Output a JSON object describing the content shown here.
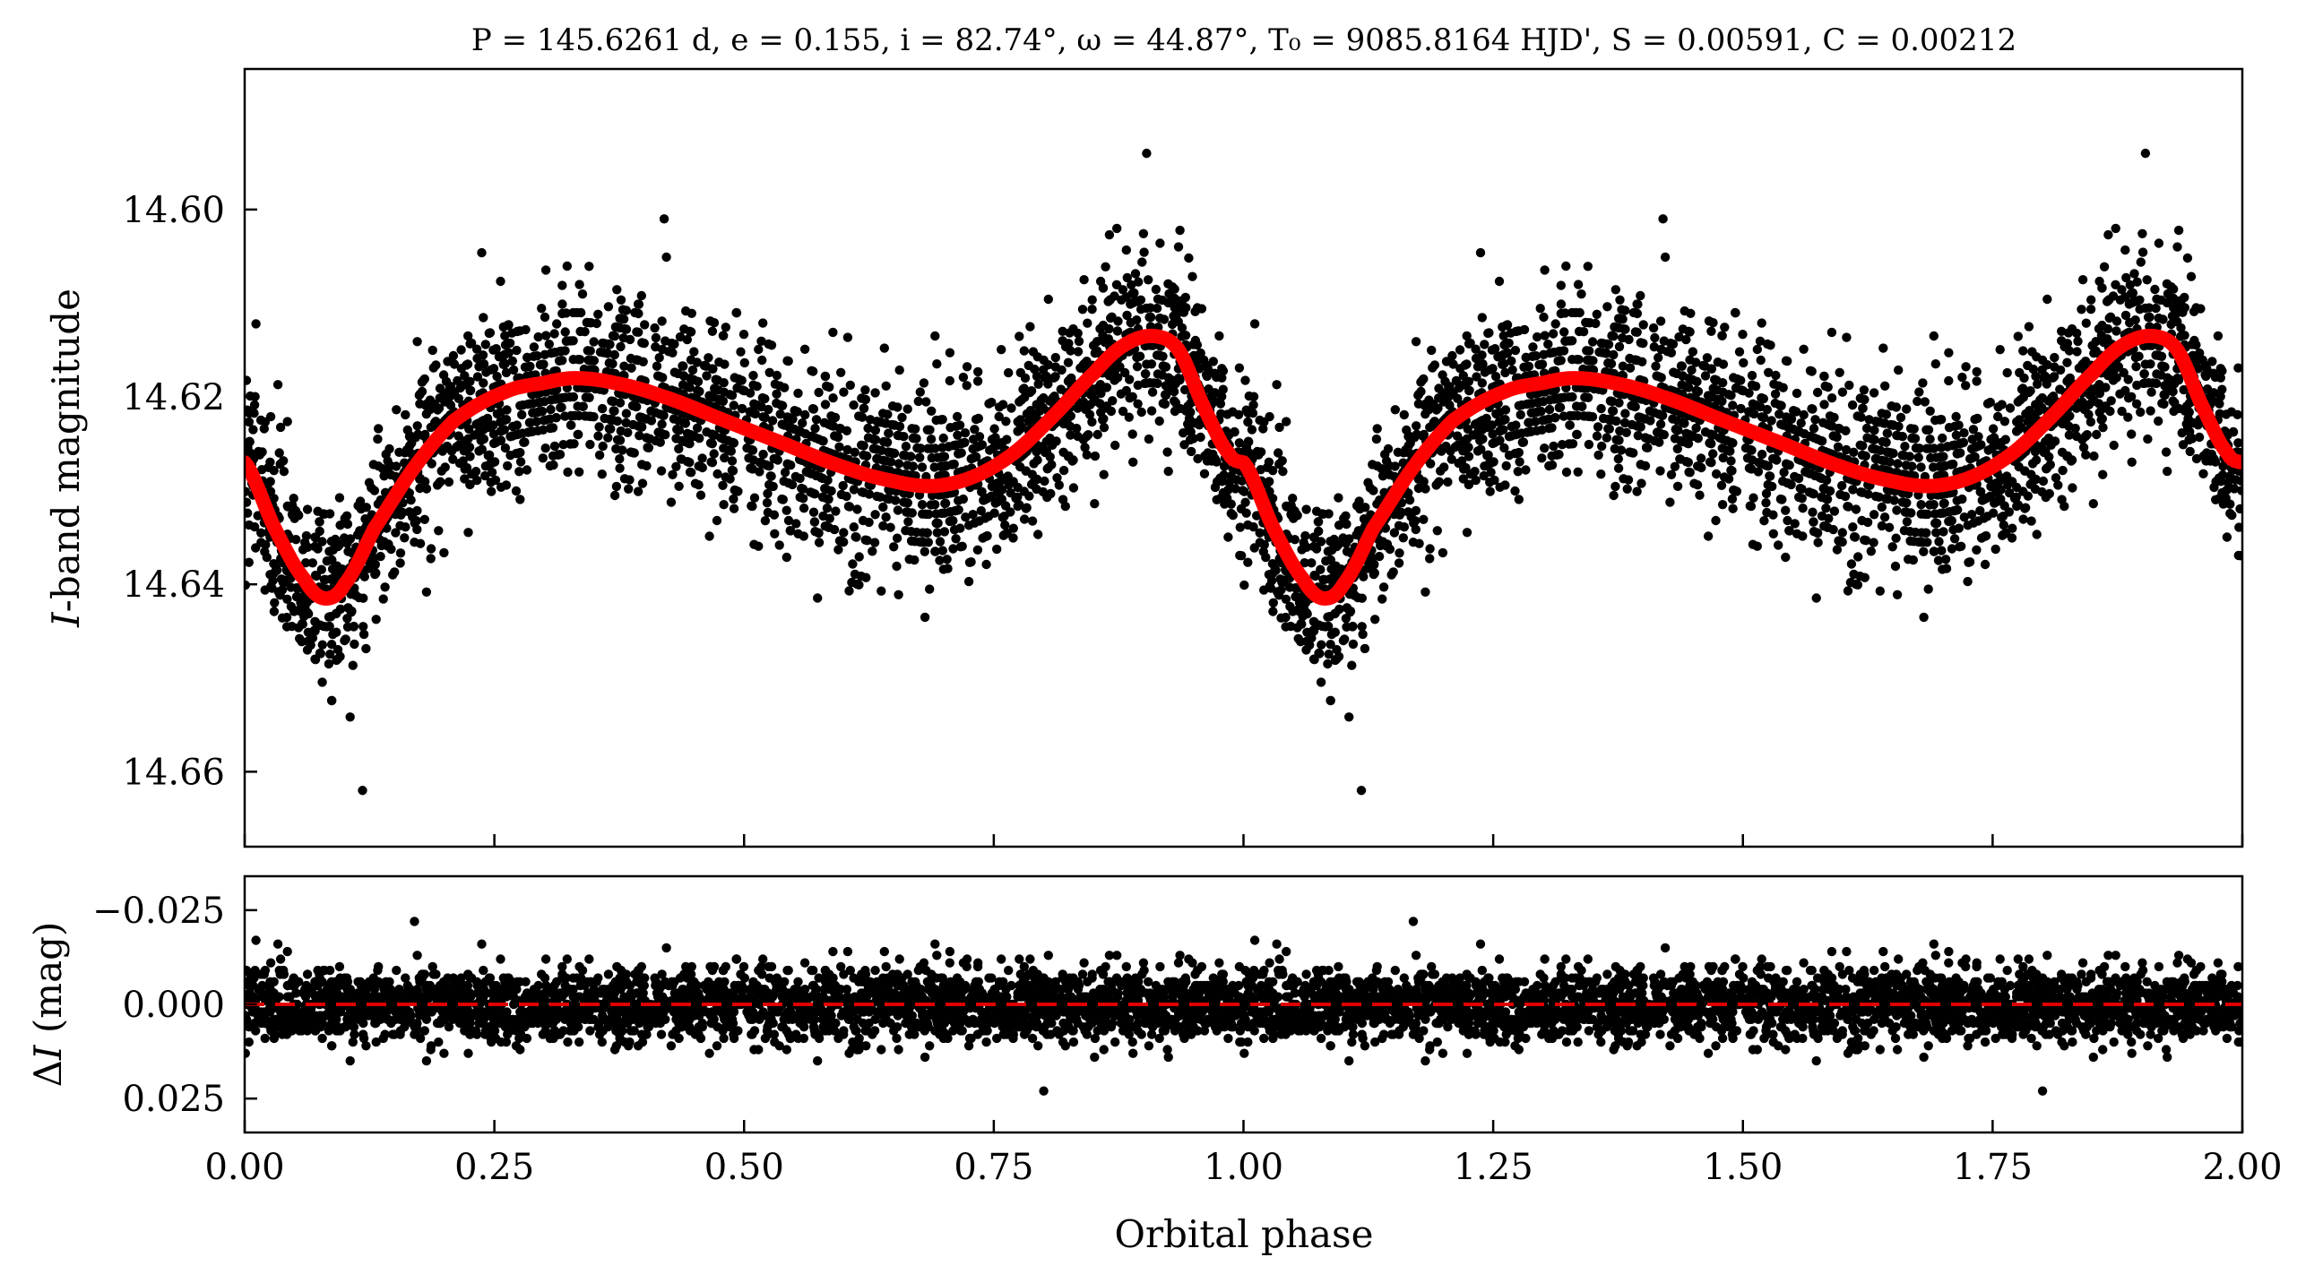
{
  "figure": {
    "title": "P = 145.6261 d, e = 0.155, i = 82.74°, ω = 44.87°, T₀ = 9085.8164 HJD', S = 0.00591, C = 0.00212",
    "background": "#ffffff"
  },
  "colors": {
    "data_points": "#000000",
    "model_curve": "#ff0000",
    "residual_zero_line": "#e00000",
    "axes": "#000000"
  },
  "chart_data": [
    {
      "type": "scatter",
      "panel": "light-curve",
      "title": "P = 145.6261 d, e = 0.155, i = 82.74°, ω = 44.87°, T₀ = 9085.8164 HJD', S = 0.00591, C = 0.00212",
      "xlabel": "Orbital phase",
      "ylabel": "I-band magnitude",
      "xlim": [
        0.0,
        2.0
      ],
      "ylim": [
        14.668,
        14.585
      ],
      "y_inverted": true,
      "xticks": [
        0.0,
        0.25,
        0.5,
        0.75,
        1.0,
        1.25,
        1.5,
        1.75,
        2.0
      ],
      "xticklabels": [],
      "yticks": [
        14.6,
        14.62,
        14.64,
        14.66
      ],
      "yticklabels": [
        "14.60",
        "14.62",
        "14.64",
        "14.66"
      ],
      "grid": false,
      "legend": "none",
      "series": [
        {
          "kind": "observations",
          "note_points": "dense phase-folded cloud, ~15000 points, scatter about model with sigma ≈ 0.0065 mag, duplicated over phase 0–2",
          "points_per_cycle": 2600,
          "scatter_sigma": 0.0065,
          "outliers": [
            {
              "x": 0.903,
              "y": 14.594
            },
            {
              "x": 1.903,
              "y": 14.594
            },
            {
              "x": 0.118,
              "y": 14.662
            },
            {
              "x": 1.118,
              "y": 14.662
            },
            {
              "x": 0.42,
              "y": 14.601
            },
            {
              "x": 1.42,
              "y": 14.601
            }
          ]
        },
        {
          "kind": "model",
          "curve": [
            {
              "x": 0.0,
              "y": 14.627
            },
            {
              "x": 0.03,
              "y": 14.634
            },
            {
              "x": 0.06,
              "y": 14.6395
            },
            {
              "x": 0.08,
              "y": 14.6415
            },
            {
              "x": 0.1,
              "y": 14.64
            },
            {
              "x": 0.13,
              "y": 14.634
            },
            {
              "x": 0.17,
              "y": 14.6275
            },
            {
              "x": 0.21,
              "y": 14.6225
            },
            {
              "x": 0.26,
              "y": 14.6195
            },
            {
              "x": 0.3,
              "y": 14.6185
            },
            {
              "x": 0.33,
              "y": 14.618
            },
            {
              "x": 0.37,
              "y": 14.6185
            },
            {
              "x": 0.42,
              "y": 14.62
            },
            {
              "x": 0.48,
              "y": 14.6225
            },
            {
              "x": 0.54,
              "y": 14.625
            },
            {
              "x": 0.6,
              "y": 14.6275
            },
            {
              "x": 0.65,
              "y": 14.629
            },
            {
              "x": 0.69,
              "y": 14.6295
            },
            {
              "x": 0.73,
              "y": 14.6285
            },
            {
              "x": 0.77,
              "y": 14.626
            },
            {
              "x": 0.81,
              "y": 14.622
            },
            {
              "x": 0.85,
              "y": 14.6175
            },
            {
              "x": 0.88,
              "y": 14.6145
            },
            {
              "x": 0.91,
              "y": 14.6135
            },
            {
              "x": 0.935,
              "y": 14.615
            },
            {
              "x": 0.96,
              "y": 14.621
            },
            {
              "x": 0.985,
              "y": 14.626
            },
            {
              "x": 1.0,
              "y": 14.627
            }
          ]
        }
      ]
    },
    {
      "type": "scatter",
      "panel": "residuals",
      "xlabel": "Orbital phase",
      "ylabel": "ΔI (mag)",
      "xlim": [
        0.0,
        2.0
      ],
      "ylim": [
        0.034,
        -0.034
      ],
      "y_inverted": true,
      "xticks": [
        0.0,
        0.25,
        0.5,
        0.75,
        1.0,
        1.25,
        1.5,
        1.75,
        2.0
      ],
      "xticklabels": [
        "0.00",
        "0.25",
        "0.50",
        "0.75",
        "1.00",
        "1.25",
        "1.50",
        "1.75",
        "2.00"
      ],
      "yticks": [
        -0.025,
        0.0,
        0.025
      ],
      "yticklabels": [
        "−0.025",
        "0.000",
        "0.025"
      ],
      "grid": false,
      "legend": "none",
      "zero_line": 0.0,
      "series": [
        {
          "kind": "residuals",
          "points_per_cycle": 2600,
          "scatter_sigma": 0.0065,
          "outliers": [
            {
              "x": 0.8,
              "y": 0.023
            },
            {
              "x": 1.8,
              "y": 0.023
            },
            {
              "x": 0.17,
              "y": -0.022
            },
            {
              "x": 1.17,
              "y": -0.022
            }
          ]
        }
      ]
    }
  ]
}
